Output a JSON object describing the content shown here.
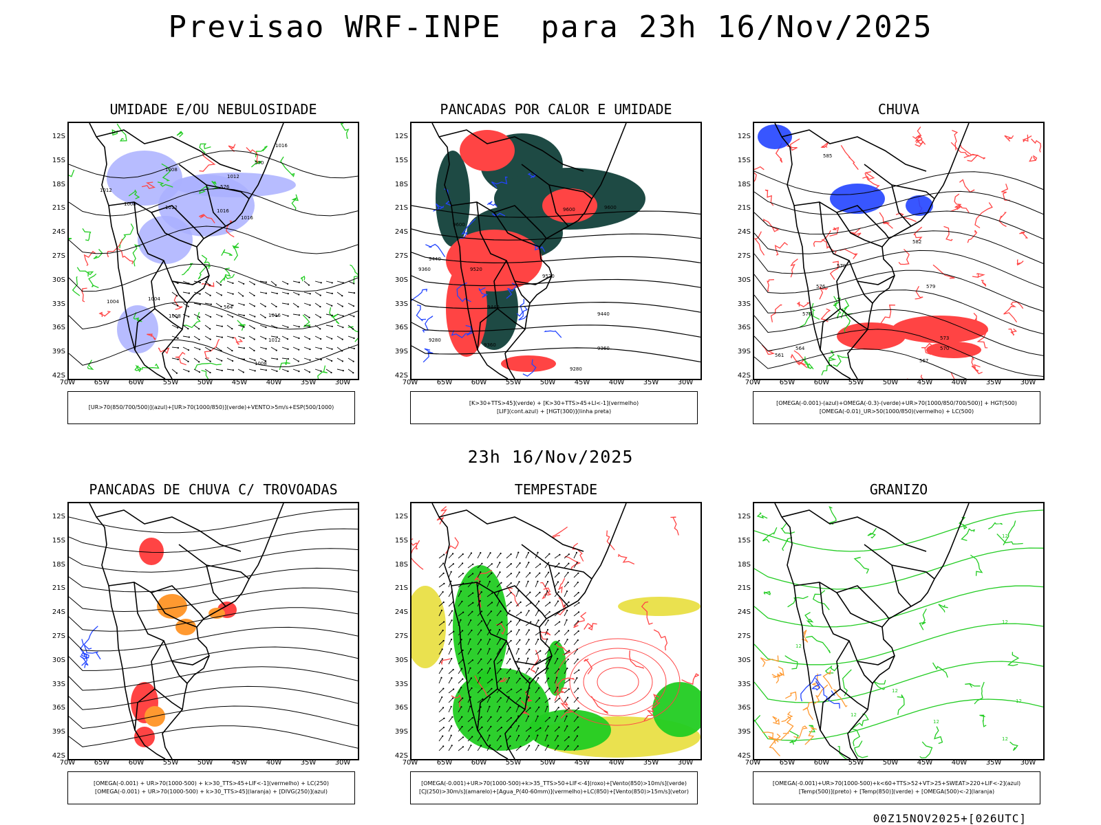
{
  "header": {
    "title": "Previsao WRF-INPE  para 23h 16/Nov/2025",
    "mid_time": "23h 16/Nov/2025",
    "run_label": "00Z15NOV2025+[026UTC]"
  },
  "axes": {
    "lat_labels": [
      "12S",
      "15S",
      "18S",
      "21S",
      "24S",
      "27S",
      "30S",
      "33S",
      "36S",
      "39S",
      "42S"
    ],
    "lon_labels": [
      "70W",
      "65W",
      "60W",
      "55W",
      "50W",
      "45W",
      "40W",
      "35W",
      "30W"
    ]
  },
  "colors": {
    "green": "#22cc22",
    "red": "#ff4444",
    "blue": "#2244ff",
    "lavender": "#aab0ff",
    "darkteal": "#1e4a44",
    "orange": "#ff9930",
    "yellow": "#e6dc30",
    "black": "#000000"
  },
  "panels": [
    {
      "id": "umidade",
      "title": "UMIDADE E/OU NEBULOSIDADE",
      "legend": [
        "[UR>70(850/700/500)](azul)+[UR>70(1000/850)](verde)+VENTO>5m/s+ESP(500/1000)"
      ],
      "contour_labels": [
        "1016",
        "1008",
        "1012",
        "1012",
        "1008",
        "1012",
        "1016",
        "1016",
        "576",
        "570",
        "1004",
        "1004",
        "1008",
        "1016",
        "1012",
        "1008",
        "564"
      ]
    },
    {
      "id": "pancadas_calor",
      "title": "PANCADAS POR CALOR E UMIDADE",
      "legend": [
        "[K>30+TTS>45](verde) + [K>30+TTS>45+LI<-1](vermelho)",
        "[LIF](cont.azul) + [HGT(300)](linha preta)"
      ],
      "contour_labels": [
        "9600",
        "9600",
        "9600",
        "9440",
        "9360",
        "9520",
        "9520",
        "9440",
        "9440",
        "9280",
        "9360",
        "9360",
        "9280"
      ]
    },
    {
      "id": "chuva",
      "title": "CHUVA",
      "legend": [
        "[OMEGA(-0.001)-(azul)+OMEGA(-0.3)-(verde)+UR>70(1000/850/700/500)] + HGT(500)",
        "[OMEGA(-0.01)_UR>50(1000/850)(vermelho) + LC(500)"
      ],
      "contour_labels": [
        "585",
        "582",
        "579",
        "576",
        "579",
        "576",
        "573",
        "570",
        "567",
        "564",
        "561"
      ]
    },
    {
      "id": "pancadas_trovoadas",
      "title": "PANCADAS DE CHUVA C/ TROVOADAS",
      "legend": [
        "[OMEGA(-0.001) + UR>70(1000-500) + k>30_TTS>45+LIF<-1](vermelho) + LC(250)",
        "[OMEGA(-0.001) + UR>70(1000-500) + k>30_TTS>45](laranja) + [DIVG(250)](azul)"
      ],
      "contour_labels": []
    },
    {
      "id": "tempestade",
      "title": "TEMPESTADE",
      "legend": [
        "[OMEGA(-0.001)+UR>70(1000-500)+k>35_TTS>50+LIF<-4](roxo)+[Vento(850)>10m/s](verde)",
        "[CJ(250)>30m/s](amarelo)+[Agua_P(40-60mm)](vermelho)+LC(850)+[Vento(850)>15m/s](vetor)"
      ],
      "contour_labels": []
    },
    {
      "id": "granizo",
      "title": "GRANIZO",
      "legend": [
        "[OMEGA(-0.001)+UR>70(1000-500)+k<60+TTS>52+VT>25+SWEAT>220+LIF<-2](azul)",
        "[Temp(500)](preto) + [Temp(850)](verde) + [OMEGA(500)<-2](laranja)"
      ],
      "contour_labels": [
        "12",
        "12",
        "12",
        "12",
        "12",
        "12",
        "12",
        "12"
      ]
    }
  ]
}
